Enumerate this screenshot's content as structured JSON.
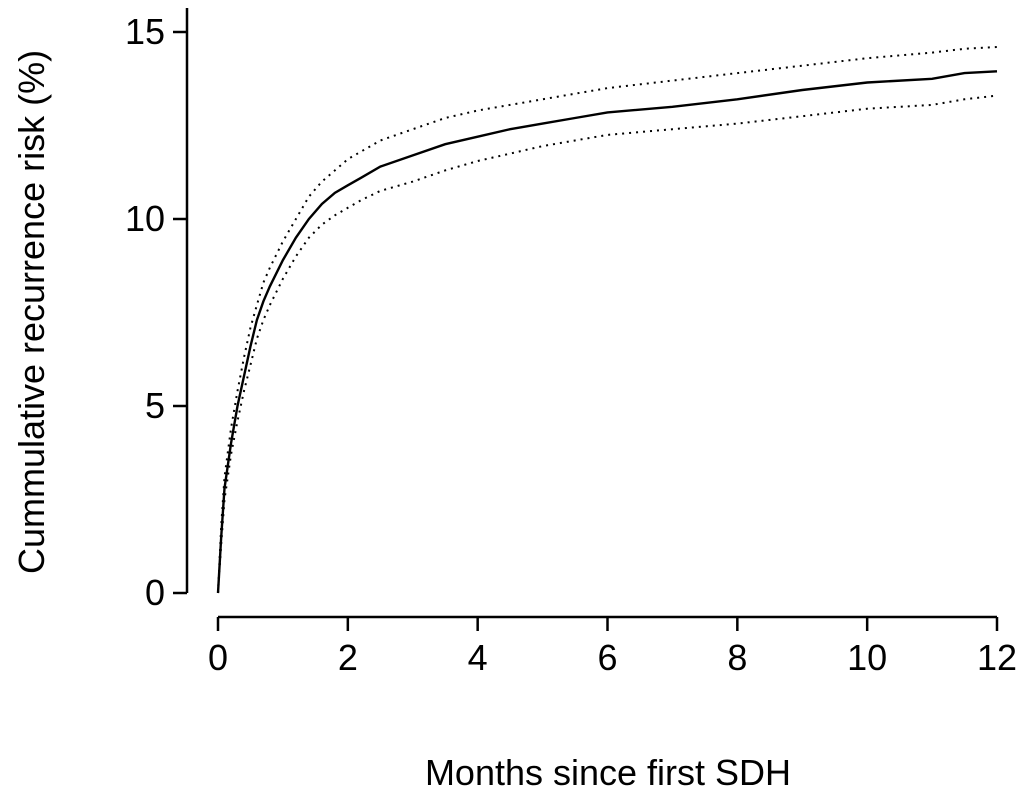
{
  "chart_data": {
    "type": "line",
    "title": "",
    "xlabel": "Months since first SDH",
    "ylabel": "Cummulative recurrence risk (%)",
    "xlim": [
      0,
      12
    ],
    "ylim": [
      0,
      15
    ],
    "xticks": [
      0,
      2,
      4,
      6,
      8,
      10,
      12
    ],
    "yticks": [
      0,
      5,
      10,
      15
    ],
    "grid": false,
    "legend": "none",
    "series": [
      {
        "role": "estimate",
        "style": "solid",
        "x": [
          0,
          0.05,
          0.1,
          0.2,
          0.3,
          0.4,
          0.5,
          0.6,
          0.7,
          0.8,
          1.0,
          1.2,
          1.4,
          1.6,
          1.8,
          2.0,
          2.2,
          2.5,
          3.0,
          3.5,
          4.0,
          4.5,
          5.0,
          5.5,
          6.0,
          7.0,
          8.0,
          9.0,
          10.0,
          11.0,
          11.5,
          12.0
        ],
        "y": [
          0,
          1.5,
          2.8,
          4.0,
          5.0,
          5.8,
          6.6,
          7.3,
          7.8,
          8.2,
          8.9,
          9.5,
          10.0,
          10.4,
          10.7,
          10.9,
          11.1,
          11.4,
          11.7,
          12.0,
          12.2,
          12.4,
          12.55,
          12.7,
          12.85,
          13.0,
          13.2,
          13.45,
          13.65,
          13.75,
          13.9,
          13.95
        ]
      },
      {
        "role": "upper-ci",
        "style": "dotted",
        "x": [
          0,
          0.05,
          0.1,
          0.2,
          0.3,
          0.4,
          0.5,
          0.6,
          0.7,
          0.8,
          1.0,
          1.2,
          1.4,
          1.6,
          1.8,
          2.0,
          2.2,
          2.5,
          3.0,
          3.5,
          4.0,
          4.5,
          5.0,
          5.5,
          6.0,
          7.0,
          8.0,
          9.0,
          10.0,
          11.0,
          11.5,
          12.0
        ],
        "y": [
          0,
          1.8,
          3.1,
          4.4,
          5.4,
          6.3,
          7.1,
          7.7,
          8.3,
          8.7,
          9.4,
          10.0,
          10.6,
          11.0,
          11.3,
          11.6,
          11.8,
          12.1,
          12.4,
          12.7,
          12.9,
          13.05,
          13.2,
          13.35,
          13.5,
          13.7,
          13.9,
          14.1,
          14.3,
          14.45,
          14.55,
          14.6
        ]
      },
      {
        "role": "lower-ci",
        "style": "dotted",
        "x": [
          0,
          0.05,
          0.1,
          0.2,
          0.3,
          0.4,
          0.5,
          0.6,
          0.7,
          0.8,
          1.0,
          1.2,
          1.4,
          1.6,
          1.8,
          2.0,
          2.2,
          2.5,
          3.0,
          3.5,
          4.0,
          4.5,
          5.0,
          5.5,
          6.0,
          7.0,
          8.0,
          9.0,
          10.0,
          11.0,
          11.5,
          12.0
        ],
        "y": [
          0,
          1.3,
          2.5,
          3.7,
          4.6,
          5.4,
          6.1,
          6.8,
          7.3,
          7.7,
          8.4,
          9.0,
          9.5,
          9.85,
          10.1,
          10.3,
          10.5,
          10.75,
          11.0,
          11.3,
          11.55,
          11.75,
          11.95,
          12.1,
          12.25,
          12.4,
          12.55,
          12.75,
          12.95,
          13.05,
          13.2,
          13.3
        ]
      }
    ]
  }
}
